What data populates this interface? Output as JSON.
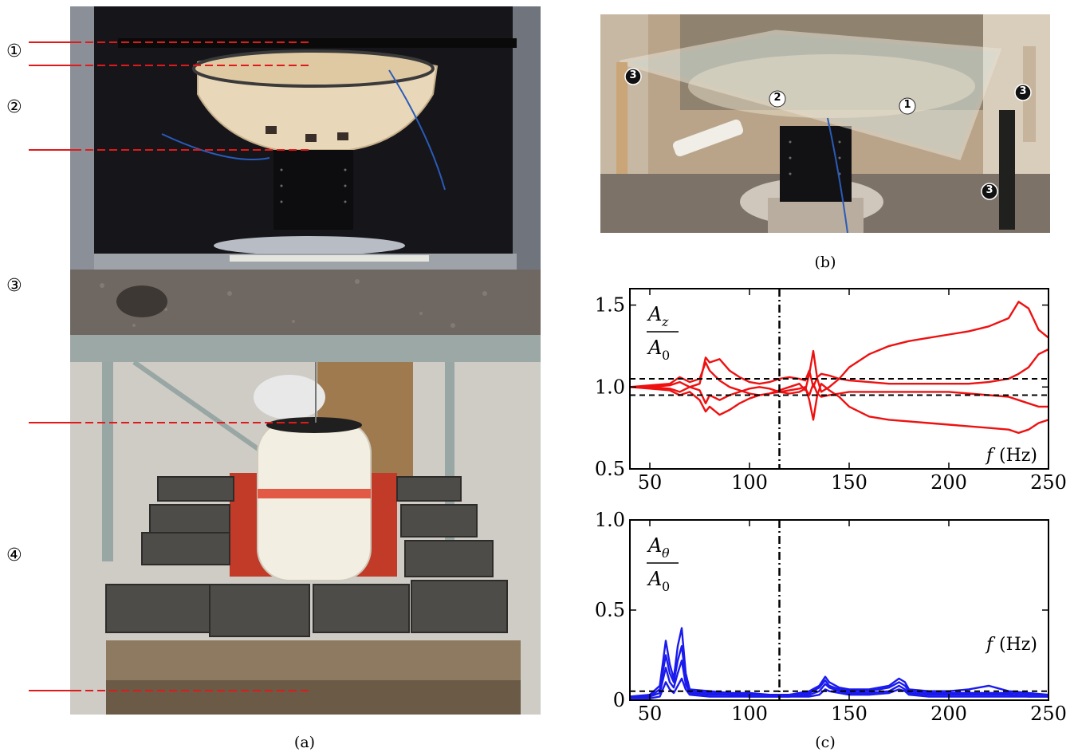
{
  "figure": {
    "panel_a": {
      "caption": "(a)",
      "markers": [
        "①",
        "②",
        "③",
        "④"
      ]
    },
    "panel_b": {
      "caption": "(b)",
      "markers": [
        "3",
        "2",
        "1",
        "3",
        "3"
      ]
    },
    "panel_c": {
      "caption": "(c)"
    }
  },
  "chart_data": [
    {
      "type": "line",
      "ylabel_num": "A",
      "ylabel_num_sub": "z",
      "ylabel_den": "A",
      "ylabel_den_sub": "0",
      "xlabel_var": "f",
      "xlabel_unit": "(Hz)",
      "xlim": [
        40,
        250
      ],
      "ylim": [
        0.5,
        1.6
      ],
      "xticks": [
        "50",
        "100",
        "150",
        "200",
        "250"
      ],
      "yticks": [
        "0.5",
        "1.0",
        "1.5"
      ],
      "yticks_values": [
        0.5,
        1.0,
        1.5
      ],
      "xticks_values": [
        50,
        100,
        150,
        200,
        250
      ],
      "hlines": [
        0.95,
        1.05
      ],
      "vline": 115,
      "colors": {
        "series": "#ee1111"
      },
      "series": [
        {
          "x": [
            40,
            50,
            60,
            65,
            70,
            75,
            78,
            80,
            85,
            90,
            95,
            100,
            105,
            110,
            115,
            120,
            125,
            128,
            130,
            132,
            134,
            136,
            140,
            145,
            150,
            160,
            170,
            180,
            190,
            200,
            210,
            220,
            230,
            235,
            240,
            245,
            250
          ],
          "y": [
            1.0,
            1.01,
            1.02,
            1.06,
            1.03,
            1.05,
            1.15,
            1.1,
            1.04,
            1.0,
            0.98,
            0.96,
            0.95,
            0.96,
            0.98,
            1.0,
            1.02,
            0.98,
            1.08,
            1.22,
            1.05,
            0.97,
            1.0,
            1.05,
            1.12,
            1.2,
            1.25,
            1.28,
            1.3,
            1.32,
            1.34,
            1.37,
            1.42,
            1.52,
            1.48,
            1.35,
            1.3
          ]
        },
        {
          "x": [
            40,
            50,
            60,
            65,
            70,
            75,
            78,
            80,
            85,
            90,
            95,
            100,
            105,
            110,
            115,
            120,
            125,
            128,
            130,
            132,
            134,
            136,
            140,
            145,
            150,
            160,
            170,
            180,
            190,
            200,
            210,
            220,
            230,
            235,
            240,
            245,
            250
          ],
          "y": [
            1.0,
            0.99,
            0.98,
            0.95,
            0.97,
            0.92,
            0.85,
            0.88,
            0.83,
            0.86,
            0.9,
            0.93,
            0.95,
            0.96,
            0.97,
            0.98,
            0.99,
            1.0,
            0.92,
            0.8,
            0.95,
            1.02,
            0.98,
            0.94,
            0.88,
            0.82,
            0.8,
            0.79,
            0.78,
            0.77,
            0.76,
            0.75,
            0.74,
            0.72,
            0.74,
            0.78,
            0.8
          ]
        },
        {
          "x": [
            40,
            50,
            60,
            65,
            70,
            75,
            78,
            80,
            85,
            90,
            95,
            100,
            105,
            110,
            115,
            120,
            125,
            128,
            130,
            132,
            134,
            136,
            140,
            145,
            150,
            160,
            170,
            180,
            190,
            200,
            210,
            220,
            230,
            235,
            240,
            245,
            250
          ],
          "y": [
            1.0,
            1.0,
            1.01,
            1.03,
            1.0,
            1.02,
            1.18,
            1.15,
            1.17,
            1.1,
            1.06,
            1.03,
            1.02,
            1.03,
            1.05,
            1.06,
            1.05,
            1.04,
            1.1,
            1.0,
            1.06,
            1.08,
            1.07,
            1.05,
            1.04,
            1.03,
            1.02,
            1.02,
            1.02,
            1.02,
            1.02,
            1.03,
            1.05,
            1.08,
            1.12,
            1.2,
            1.23
          ]
        },
        {
          "x": [
            40,
            50,
            60,
            65,
            70,
            75,
            78,
            80,
            85,
            90,
            95,
            100,
            105,
            110,
            115,
            120,
            125,
            128,
            130,
            132,
            134,
            136,
            140,
            145,
            150,
            160,
            170,
            180,
            190,
            200,
            210,
            220,
            230,
            235,
            240,
            245,
            250
          ],
          "y": [
            1.0,
            1.0,
            0.99,
            0.97,
            1.0,
            0.98,
            0.9,
            0.95,
            0.92,
            0.95,
            0.97,
            0.99,
            1.0,
            0.99,
            0.97,
            0.96,
            0.97,
            0.99,
            0.95,
            1.02,
            0.96,
            0.94,
            0.95,
            0.96,
            0.97,
            0.97,
            0.97,
            0.97,
            0.97,
            0.97,
            0.96,
            0.95,
            0.94,
            0.92,
            0.9,
            0.88,
            0.88
          ]
        }
      ]
    },
    {
      "type": "line",
      "ylabel_num": "A",
      "ylabel_num_sub": "θ",
      "ylabel_den": "A",
      "ylabel_den_sub": "0",
      "xlabel_var": "f",
      "xlabel_unit": "(Hz)",
      "xlim": [
        40,
        250
      ],
      "ylim": [
        0,
        1.0
      ],
      "xticks": [
        "50",
        "100",
        "150",
        "200",
        "250"
      ],
      "yticks": [
        "0",
        "0.5",
        "1.0"
      ],
      "yticks_values": [
        0,
        0.5,
        1.0
      ],
      "xticks_values": [
        50,
        100,
        150,
        200,
        250
      ],
      "hlines": [
        0.05
      ],
      "vline": 115,
      "colors": {
        "series": "#1a1aee"
      },
      "series": [
        {
          "x": [
            40,
            50,
            55,
            58,
            60,
            62,
            64,
            66,
            68,
            70,
            80,
            90,
            100,
            110,
            115,
            120,
            130,
            135,
            138,
            140,
            145,
            150,
            160,
            170,
            175,
            178,
            180,
            190,
            200,
            210,
            220,
            230,
            240,
            250
          ],
          "y": [
            0.02,
            0.03,
            0.08,
            0.33,
            0.2,
            0.12,
            0.3,
            0.4,
            0.15,
            0.06,
            0.05,
            0.04,
            0.04,
            0.03,
            0.03,
            0.03,
            0.05,
            0.08,
            0.13,
            0.1,
            0.07,
            0.06,
            0.06,
            0.08,
            0.12,
            0.1,
            0.06,
            0.05,
            0.05,
            0.06,
            0.08,
            0.05,
            0.04,
            0.03
          ]
        },
        {
          "x": [
            40,
            50,
            55,
            58,
            60,
            62,
            64,
            66,
            68,
            70,
            80,
            90,
            100,
            110,
            115,
            120,
            130,
            135,
            138,
            140,
            145,
            150,
            160,
            170,
            175,
            178,
            180,
            190,
            200,
            210,
            220,
            230,
            240,
            250
          ],
          "y": [
            0.02,
            0.02,
            0.06,
            0.25,
            0.15,
            0.1,
            0.22,
            0.3,
            0.12,
            0.05,
            0.04,
            0.03,
            0.03,
            0.03,
            0.03,
            0.03,
            0.04,
            0.07,
            0.11,
            0.08,
            0.06,
            0.05,
            0.05,
            0.07,
            0.1,
            0.08,
            0.05,
            0.04,
            0.04,
            0.04,
            0.04,
            0.04,
            0.03,
            0.03
          ]
        },
        {
          "x": [
            40,
            50,
            55,
            58,
            60,
            62,
            64,
            66,
            68,
            70,
            80,
            90,
            100,
            110,
            115,
            120,
            130,
            135,
            138,
            140,
            145,
            150,
            160,
            170,
            175,
            178,
            180,
            190,
            200,
            210,
            220,
            230,
            240,
            250
          ],
          "y": [
            0.01,
            0.02,
            0.04,
            0.18,
            0.1,
            0.07,
            0.15,
            0.22,
            0.09,
            0.04,
            0.03,
            0.03,
            0.02,
            0.02,
            0.02,
            0.02,
            0.03,
            0.05,
            0.09,
            0.07,
            0.05,
            0.04,
            0.04,
            0.05,
            0.08,
            0.06,
            0.04,
            0.03,
            0.03,
            0.03,
            0.03,
            0.03,
            0.02,
            0.02
          ]
        },
        {
          "x": [
            40,
            50,
            55,
            58,
            60,
            62,
            64,
            66,
            68,
            70,
            80,
            90,
            100,
            110,
            115,
            120,
            130,
            135,
            138,
            140,
            145,
            150,
            160,
            170,
            175,
            178,
            180,
            190,
            200,
            210,
            220,
            230,
            240,
            250
          ],
          "y": [
            0.01,
            0.01,
            0.02,
            0.1,
            0.06,
            0.04,
            0.08,
            0.12,
            0.06,
            0.03,
            0.02,
            0.02,
            0.02,
            0.02,
            0.02,
            0.02,
            0.02,
            0.03,
            0.06,
            0.05,
            0.04,
            0.03,
            0.03,
            0.04,
            0.06,
            0.05,
            0.03,
            0.02,
            0.02,
            0.02,
            0.02,
            0.02,
            0.02,
            0.02
          ]
        }
      ]
    }
  ]
}
